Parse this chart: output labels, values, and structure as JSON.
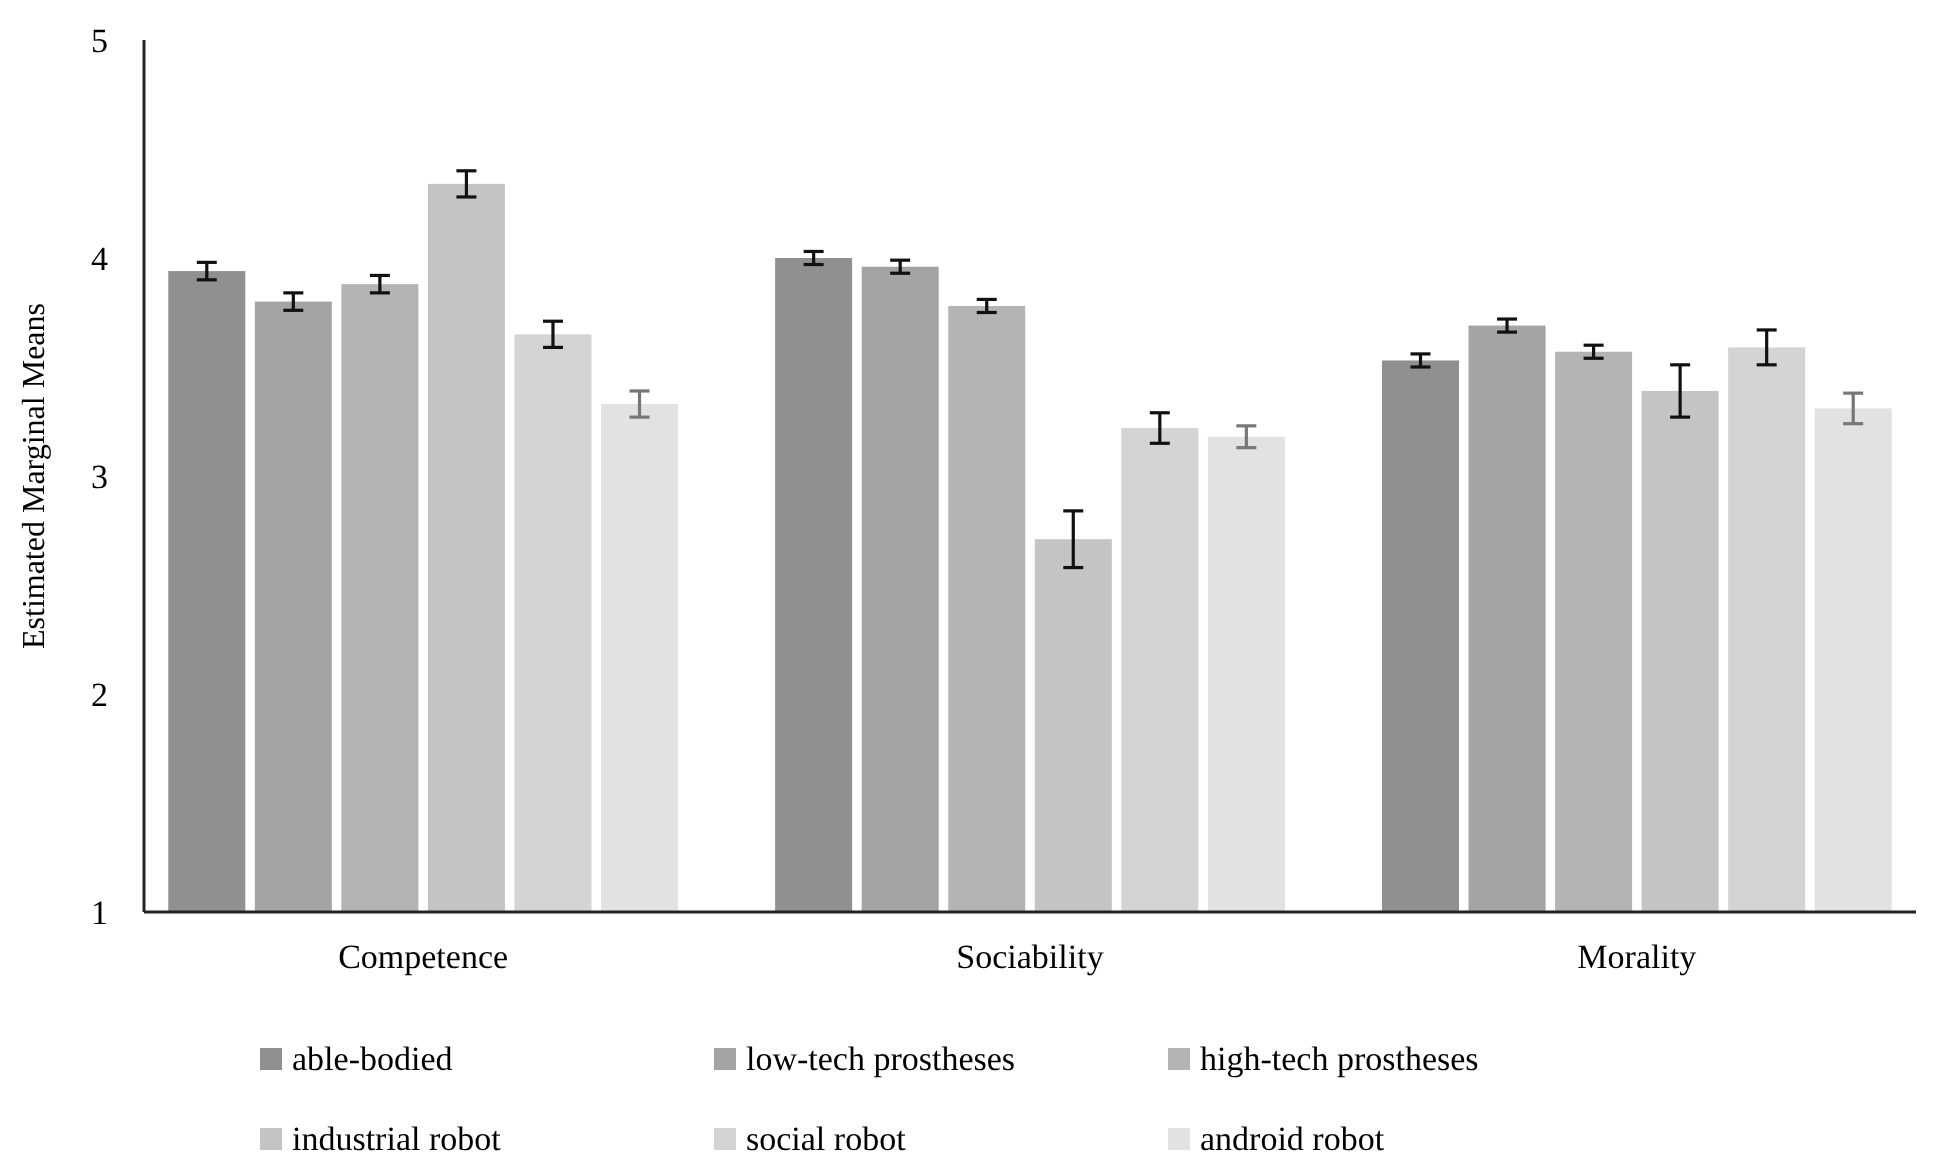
{
  "chart_data": {
    "type": "bar",
    "ylabel": "Estimated Marginal Means",
    "categories": [
      "Competence",
      "Sociability",
      "Morality"
    ],
    "ylim": [
      1,
      5
    ],
    "yticks": [
      1,
      2,
      3,
      4,
      5
    ],
    "grid": false,
    "legend": "bottom",
    "series": [
      {
        "name": "able-bodied",
        "color": "#8f908f",
        "values": [
          3.94,
          4.0,
          3.53
        ],
        "errors": [
          0.04,
          0.03,
          0.03
        ]
      },
      {
        "name": "low-tech prostheses",
        "color": "#a3a4a3",
        "values": [
          3.8,
          3.96,
          3.69
        ],
        "errors": [
          0.04,
          0.03,
          0.03
        ]
      },
      {
        "name": "high-tech prostheses",
        "color": "#b3b4b3",
        "values": [
          3.88,
          3.78,
          3.57
        ],
        "errors": [
          0.04,
          0.03,
          0.03
        ]
      },
      {
        "name": "industrial robot",
        "color": "#c4c4c4",
        "values": [
          4.34,
          2.71,
          3.39
        ],
        "errors": [
          0.06,
          0.13,
          0.12
        ]
      },
      {
        "name": "social robot",
        "color": "#d4d4d4",
        "values": [
          3.65,
          3.22,
          3.59
        ],
        "errors": [
          0.06,
          0.07,
          0.08
        ]
      },
      {
        "name": "android robot",
        "color": "#e2e2e2",
        "values": [
          3.33,
          3.18,
          3.31
        ],
        "errors": [
          0.06,
          0.05,
          0.07
        ]
      }
    ]
  }
}
